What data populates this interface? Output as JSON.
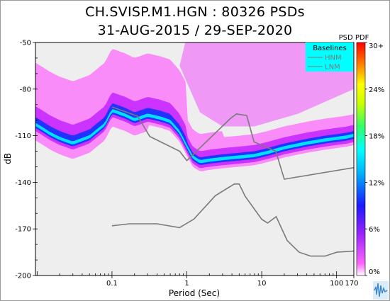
{
  "chart_data": {
    "type": "heatmap",
    "title": "CH.SVISP.M1.HGN : 80326 PSDs",
    "subtitle": "31-AUG-2015 / 29-SEP-2020",
    "xlabel": "Period (Sec)",
    "ylabel": "dB",
    "x_scale": "log",
    "xlim": [
      0.0095,
      170
    ],
    "ylim": [
      -200,
      -50
    ],
    "x_ticks": [
      {
        "value": 0.1,
        "label": "0.1"
      },
      {
        "value": 1,
        "label": "1"
      },
      {
        "value": 10,
        "label": "10"
      },
      {
        "value": 100,
        "label": "100"
      },
      {
        "value": 170,
        "label": "170"
      }
    ],
    "y_ticks": [
      {
        "value": -50,
        "label": "-50"
      },
      {
        "value": -80,
        "label": "-80"
      },
      {
        "value": -110,
        "label": "-110"
      },
      {
        "value": -140,
        "label": "-140"
      },
      {
        "value": -170,
        "label": "-170"
      },
      {
        "value": -200,
        "label": "-200"
      }
    ],
    "colorbar": {
      "title": "PSD PDF",
      "ticks": [
        "30+",
        "24%",
        "18%",
        "12%",
        "6%",
        "0%"
      ]
    },
    "legend": {
      "title": "Baselines",
      "entries": [
        "HNM",
        "LNM"
      ],
      "placement": "top-right"
    },
    "nhnm": {
      "x": [
        0.1,
        0.22,
        0.32,
        0.8,
        1.0,
        3.8,
        4.6,
        6.3,
        7.9,
        15.4,
        20,
        354
      ],
      "y": [
        -91.5,
        -97.4,
        -110.5,
        -120,
        -126,
        -99,
        -96,
        -97,
        -114,
        -120,
        -138,
        -128
      ]
    },
    "nlnm": {
      "x": [
        0.1,
        0.17,
        0.4,
        0.8,
        1.24,
        2.4,
        4.3,
        5,
        6,
        10,
        12,
        15.6,
        21.9,
        31.6,
        45,
        70,
        101,
        154,
        328
      ],
      "y": [
        -168,
        -166.7,
        -166.7,
        -169.2,
        -163.7,
        -148.6,
        -141.1,
        -141.1,
        -149,
        -163.8,
        -166.2,
        -162.1,
        -177.5,
        -185,
        -187.5,
        -187.5,
        -185,
        -184.4,
        -183
      ]
    },
    "psd_mode": {
      "x": [
        0.0095,
        0.012,
        0.015,
        0.02,
        0.03,
        0.05,
        0.08,
        0.1,
        0.15,
        0.2,
        0.3,
        0.45,
        0.6,
        0.8,
        1.0,
        1.2,
        1.5,
        2.0,
        3.0,
        5.0,
        8.0,
        12,
        20,
        40,
        70,
        100,
        140,
        170
      ],
      "y": [
        -103,
        -106,
        -109,
        -112,
        -115,
        -111,
        -103,
        -94,
        -97,
        -100,
        -97,
        -99,
        -101,
        -108,
        -117,
        -124,
        -127,
        -126,
        -125,
        -124,
        -123,
        -121,
        -118,
        -115,
        -113,
        -112,
        -111,
        -110
      ]
    }
  }
}
